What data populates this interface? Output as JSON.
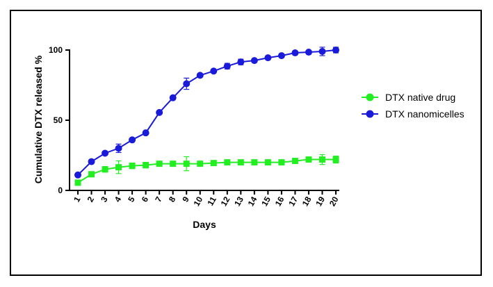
{
  "chart_data": {
    "type": "line",
    "xlabel": "Days",
    "ylabel": "Cumulative DTX released %",
    "x": [
      1,
      2,
      3,
      4,
      5,
      6,
      7,
      8,
      9,
      10,
      11,
      12,
      13,
      14,
      15,
      16,
      17,
      18,
      19,
      20
    ],
    "x_tick_labels": [
      "1",
      "2",
      "3",
      "4",
      "5",
      "6",
      "7",
      "8",
      "9",
      "10",
      "11",
      "12",
      "13",
      "14",
      "15",
      "16",
      "17",
      "18",
      "19",
      "20"
    ],
    "ylim": [
      0,
      100
    ],
    "y_ticks": [
      0,
      50,
      100
    ],
    "y_tick_labels": [
      "0",
      "50",
      "100"
    ],
    "grid": false,
    "legend_position": "right",
    "series": [
      {
        "name": "DTX native drug",
        "color": "#22ee22",
        "marker": "square",
        "values": [
          5.5,
          11.5,
          15,
          16.5,
          17.5,
          18,
          19,
          19,
          19,
          19,
          19.5,
          20,
          20,
          20,
          20,
          20,
          21,
          22,
          22,
          22
        ],
        "errors": [
          1,
          1.5,
          2,
          4.5,
          2,
          2,
          1,
          1,
          5,
          1,
          1,
          1.5,
          1.5,
          1,
          1,
          1,
          1,
          1,
          3.5,
          2.5
        ]
      },
      {
        "name": "DTX nanomicelles",
        "color": "#1a1adb",
        "marker": "circle",
        "values": [
          11,
          20.5,
          26.5,
          30,
          36,
          41,
          55.5,
          66,
          76,
          82,
          85,
          88.5,
          91.5,
          92.5,
          94.5,
          96,
          98,
          98.5,
          99,
          100
        ],
        "errors": [
          1,
          1,
          1,
          3,
          1,
          1,
          1,
          1,
          4,
          1,
          1,
          2,
          2,
          1,
          1,
          1,
          1,
          1,
          3,
          2
        ]
      }
    ]
  }
}
